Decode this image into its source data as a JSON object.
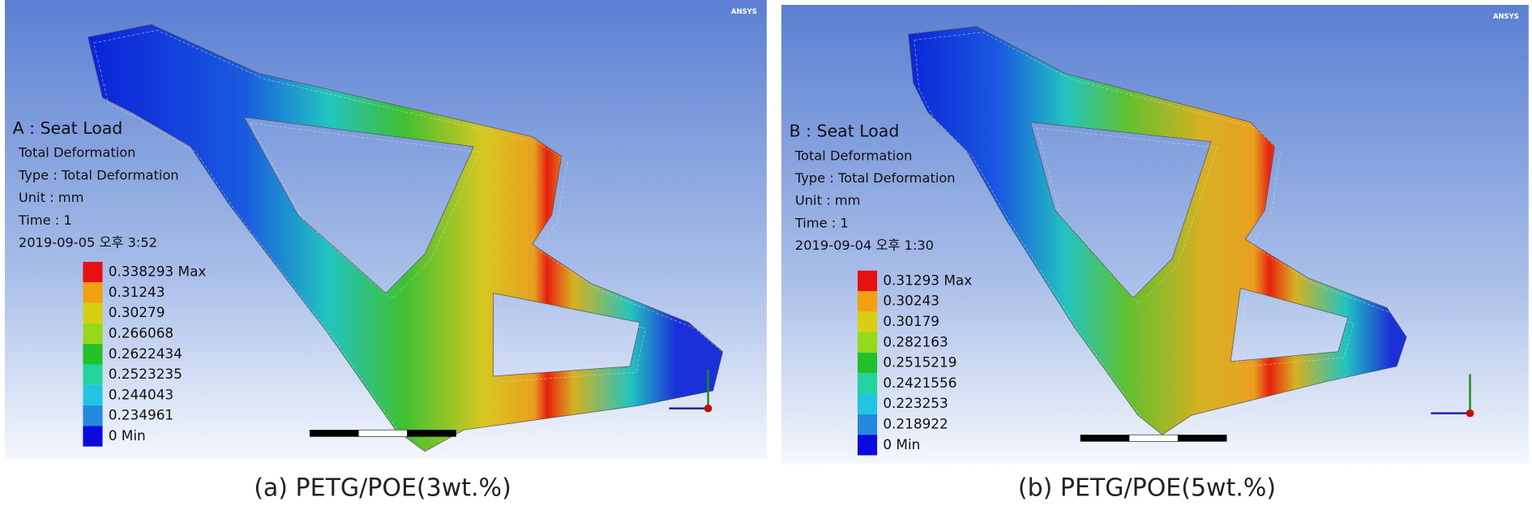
{
  "panels": [
    {
      "logo": "ANSYS",
      "title": "A : Seat Load",
      "info": [
        "Total Deformation",
        "Type : Total Deformation",
        "Unit : mm",
        "Time : 1",
        "2019-09-05 오후 3:52"
      ],
      "legend": [
        {
          "label": "0.338293 Max",
          "color": "#e81010"
        },
        {
          "label": "0.31243",
          "color": "#f0a010"
        },
        {
          "label": "0.30279",
          "color": "#d6d010"
        },
        {
          "label": "0.266068",
          "color": "#96d81a"
        },
        {
          "label": "0.2622434",
          "color": "#22c02a"
        },
        {
          "label": "0.2523235",
          "color": "#22d4a0"
        },
        {
          "label": "0.244043",
          "color": "#22c4e0"
        },
        {
          "label": "0.234961",
          "color": "#2288e0"
        },
        {
          "label": "0 Min",
          "color": "#0a0ae0"
        }
      ],
      "caption": "(a) PETG/POE(3wt.%)"
    },
    {
      "logo": "ANSYS",
      "title": "B : Seat Load",
      "info": [
        "Total Deformation",
        "Type : Total Deformation",
        "Unit : mm",
        "Time : 1",
        "2019-09-04 오후 1:30"
      ],
      "legend": [
        {
          "label": "0.31293 Max",
          "color": "#e81010"
        },
        {
          "label": "0.30243",
          "color": "#f0a010"
        },
        {
          "label": "0.30179",
          "color": "#d6d010"
        },
        {
          "label": "0.282163",
          "color": "#96d81a"
        },
        {
          "label": "0.2515219",
          "color": "#22c02a"
        },
        {
          "label": "0.2421556",
          "color": "#22d4a0"
        },
        {
          "label": "0.223253",
          "color": "#22c4e0"
        },
        {
          "label": "0.218922",
          "color": "#2288e0"
        },
        {
          "label": "0 Min",
          "color": "#0a0ae0"
        }
      ],
      "caption": "(b) PETG/POE(5wt.%)"
    }
  ]
}
